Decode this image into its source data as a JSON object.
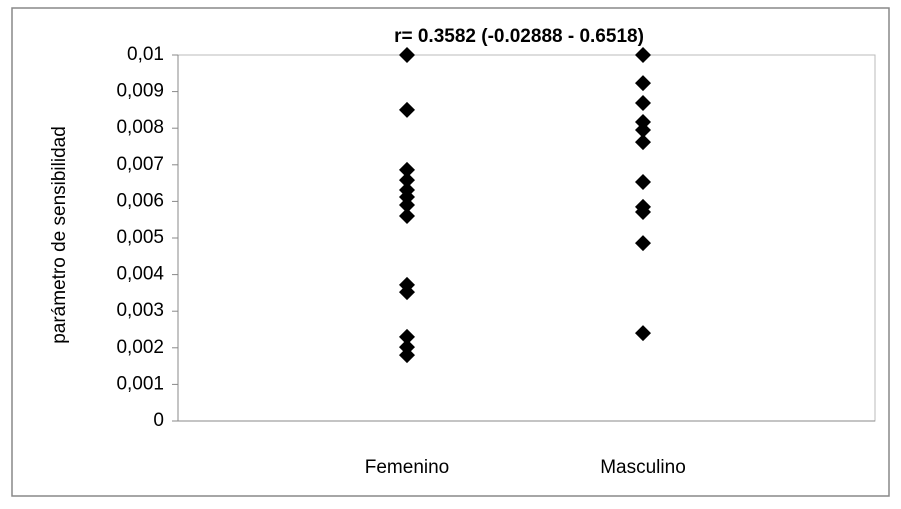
{
  "chart_data": {
    "type": "scatter",
    "title": "r= 0.3582 (-0.02888 - 0.6518)",
    "y_label": "parámetro de sensibilidad",
    "xlim": [
      0,
      3
    ],
    "xticks": [
      {
        "value": 1,
        "label": "Femenino"
      },
      {
        "value": 2,
        "label": "Masculino"
      }
    ],
    "ylim": [
      0,
      0.01
    ],
    "yticks": [
      0,
      {
        "value": 0.001,
        "label": "0,001"
      },
      {
        "value": 0.002,
        "label": "0,002"
      },
      {
        "value": 0.003,
        "label": "0,003"
      },
      {
        "value": 0.004,
        "label": "0,004"
      },
      {
        "value": 0.005,
        "label": "0,005"
      },
      {
        "value": 0.006,
        "label": "0,006"
      },
      {
        "value": 0.007,
        "label": "0,007"
      },
      {
        "value": 0.008,
        "label": "0,008"
      },
      {
        "value": 0.009,
        "label": "0,009"
      },
      {
        "value": 0.01,
        "label": "0,01"
      }
    ],
    "series": [
      {
        "color": "#000000",
        "x": [
          1,
          1,
          1,
          1,
          1,
          1,
          1,
          1,
          1,
          1,
          1,
          1,
          1
        ],
        "values": [
          0.01,
          0.0085,
          0.00686,
          0.00658,
          0.00631,
          0.00612,
          0.0059,
          0.0056,
          0.00372,
          0.00352,
          0.0023,
          0.00202,
          0.0018
        ]
      },
      {
        "color": "#000000",
        "x": [
          2,
          2,
          2,
          2,
          2,
          2,
          2,
          2,
          2,
          2,
          2
        ],
        "values": [
          0.01,
          0.00923,
          0.00869,
          0.00817,
          0.00795,
          0.00762,
          0.00653,
          0.00585,
          0.00571,
          0.00486,
          0.0024
        ]
      }
    ]
  }
}
